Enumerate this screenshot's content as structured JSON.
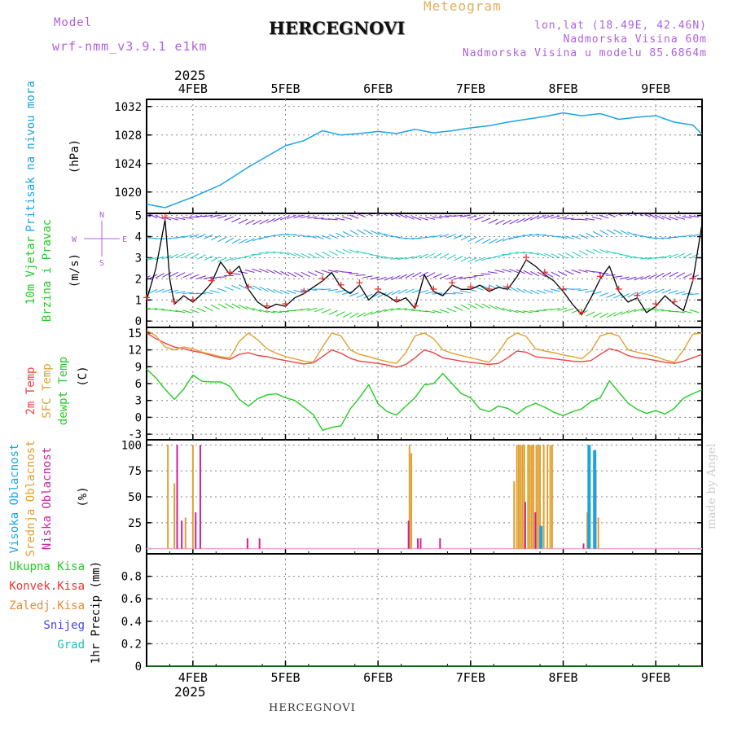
{
  "header": {
    "meteogram_label": "Meteogram",
    "title": "HERCEGNOVI",
    "model_label": "Model",
    "model_name": "wrf-nmm_v3.9.1 e1km",
    "lonlat": "lon,lat (18.49E, 42.46N)",
    "elevation": "Nadmorska Visina 60m",
    "model_elevation": "Nadmorska Visina u modelu 85.6864m",
    "year_top": "2025",
    "year_bottom": "2025",
    "footer_title": "HERCEGNOVI",
    "watermark": "made by Angel"
  },
  "colors": {
    "pressure": "#1aa4e6",
    "wind_speed": "#000000",
    "gust_marks": "#ee3333",
    "t2m": "#ee4444",
    "sfc": "#e0a030",
    "dewpt": "#22cc22",
    "cloud_high": "#1aa4e6",
    "cloud_mid": "#e0a030",
    "cloud_low": "#cc2299",
    "grid": "#888888"
  },
  "chart_data": [
    {
      "id": "pressure",
      "type": "line",
      "ylabel_lines": [
        "Pritisak na nivou mora"
      ],
      "unit": "(hPa)",
      "ylim": [
        1017,
        1033
      ],
      "yticks": [
        1020,
        1024,
        1028,
        1032
      ],
      "x_days": [
        3.5,
        3.7,
        4.0,
        4.3,
        4.6,
        4.8,
        5.0,
        5.2,
        5.4,
        5.6,
        5.8,
        6.0,
        6.2,
        6.4,
        6.6,
        6.8,
        7.0,
        7.2,
        7.4,
        7.6,
        7.8,
        8.0,
        8.2,
        8.4,
        8.6,
        8.8,
        9.0,
        9.2,
        9.4,
        9.5
      ],
      "values": [
        1018.3,
        1017.8,
        1019.3,
        1021.0,
        1023.5,
        1025.0,
        1026.5,
        1027.2,
        1028.6,
        1028.0,
        1028.2,
        1028.5,
        1028.2,
        1028.8,
        1028.3,
        1028.6,
        1029.0,
        1029.3,
        1029.8,
        1030.2,
        1030.6,
        1031.1,
        1030.7,
        1031.0,
        1030.2,
        1030.5,
        1030.7,
        1029.8,
        1029.4,
        1028.1
      ]
    },
    {
      "id": "wind",
      "type": "line",
      "ylabel_lines": [
        "10m Vjetar",
        "Brzina i Pravac"
      ],
      "unit": "(m/s)",
      "compass": [
        "N",
        "W",
        "E",
        "S"
      ],
      "ylim": [
        -0.3,
        5.1
      ],
      "yticks": [
        0,
        1,
        2,
        3,
        4,
        5
      ],
      "x_days": [
        3.5,
        3.6,
        3.7,
        3.75,
        3.8,
        3.9,
        4.0,
        4.1,
        4.2,
        4.3,
        4.4,
        4.5,
        4.6,
        4.7,
        4.8,
        4.9,
        5.0,
        5.1,
        5.2,
        5.3,
        5.4,
        5.5,
        5.6,
        5.7,
        5.8,
        5.9,
        6.0,
        6.1,
        6.2,
        6.3,
        6.4,
        6.5,
        6.6,
        6.7,
        6.8,
        6.9,
        7.0,
        7.1,
        7.2,
        7.3,
        7.4,
        7.5,
        7.6,
        7.7,
        7.8,
        7.9,
        8.0,
        8.1,
        8.2,
        8.3,
        8.4,
        8.5,
        8.6,
        8.7,
        8.8,
        8.9,
        9.0,
        9.1,
        9.2,
        9.3,
        9.4,
        9.5
      ],
      "values": [
        1.0,
        2.5,
        4.8,
        2.0,
        0.8,
        1.2,
        0.9,
        1.3,
        1.8,
        2.8,
        2.2,
        2.6,
        1.5,
        0.9,
        0.6,
        0.8,
        0.7,
        1.1,
        1.3,
        1.6,
        1.9,
        2.3,
        1.6,
        1.3,
        1.7,
        1.0,
        1.4,
        1.2,
        0.9,
        1.1,
        0.6,
        2.2,
        1.4,
        1.2,
        1.7,
        1.5,
        1.5,
        1.7,
        1.4,
        1.6,
        1.5,
        2.1,
        2.9,
        2.6,
        2.2,
        1.9,
        1.4,
        0.8,
        0.3,
        1.1,
        2.0,
        2.6,
        1.4,
        0.9,
        1.1,
        0.4,
        0.7,
        1.2,
        0.8,
        0.5,
        1.9,
        4.6
      ]
    },
    {
      "id": "temperature",
      "type": "line",
      "ylabel_lines": [
        "2m Temp",
        "SFC Temp",
        "dewpt Temp"
      ],
      "unit": "(C)",
      "ylim": [
        -4,
        16
      ],
      "yticks": [
        -3,
        0,
        3,
        6,
        9,
        12,
        15
      ],
      "x_days": [
        3.5,
        3.6,
        3.7,
        3.8,
        3.9,
        4.0,
        4.1,
        4.2,
        4.3,
        4.4,
        4.5,
        4.6,
        4.7,
        4.8,
        4.9,
        5.0,
        5.1,
        5.2,
        5.3,
        5.4,
        5.5,
        5.6,
        5.7,
        5.8,
        5.9,
        6.0,
        6.1,
        6.2,
        6.3,
        6.4,
        6.5,
        6.6,
        6.7,
        6.8,
        6.9,
        7.0,
        7.1,
        7.2,
        7.3,
        7.4,
        7.5,
        7.6,
        7.7,
        7.8,
        7.9,
        8.0,
        8.1,
        8.2,
        8.3,
        8.4,
        8.5,
        8.6,
        8.7,
        8.8,
        8.9,
        9.0,
        9.1,
        9.2,
        9.3,
        9.4,
        9.5
      ],
      "series": [
        {
          "id": "t2m",
          "values": [
            15.0,
            14.0,
            13.2,
            12.5,
            12.2,
            11.8,
            11.5,
            11.0,
            10.6,
            10.3,
            11.2,
            11.5,
            11.0,
            10.8,
            10.4,
            10.1,
            9.8,
            9.5,
            9.7,
            10.8,
            12.0,
            11.4,
            10.5,
            10.0,
            9.8,
            9.6,
            9.3,
            8.9,
            9.4,
            10.6,
            12.0,
            11.5,
            10.6,
            10.3,
            10.0,
            9.8,
            9.6,
            9.4,
            9.6,
            10.6,
            11.8,
            11.6,
            10.8,
            10.6,
            10.4,
            10.2,
            10.0,
            9.9,
            10.1,
            11.2,
            12.2,
            11.8,
            11.0,
            10.6,
            10.4,
            10.1,
            9.8,
            9.6,
            10.0,
            10.6,
            11.2
          ]
        },
        {
          "id": "sfc",
          "values": [
            15.5,
            14.5,
            12.5,
            12.0,
            12.5,
            12.2,
            11.6,
            11.2,
            10.8,
            10.6,
            13.5,
            15.0,
            13.8,
            12.2,
            11.4,
            10.8,
            10.4,
            10.0,
            9.8,
            12.5,
            15.0,
            14.5,
            12.0,
            11.2,
            10.8,
            10.3,
            9.9,
            9.6,
            11.5,
            14.5,
            15.0,
            14.0,
            12.0,
            11.4,
            11.0,
            10.6,
            10.2,
            9.8,
            11.5,
            14.0,
            15.0,
            14.4,
            12.2,
            11.8,
            11.5,
            11.1,
            10.8,
            10.4,
            11.8,
            14.5,
            15.0,
            14.5,
            12.0,
            11.6,
            11.2,
            10.8,
            10.2,
            9.8,
            12.0,
            14.8,
            15.0
          ]
        },
        {
          "id": "dewpt",
          "values": [
            8.6,
            7.0,
            5.0,
            3.2,
            5.0,
            7.5,
            6.4,
            6.3,
            6.3,
            5.5,
            3.2,
            2.0,
            3.3,
            4.0,
            4.2,
            3.5,
            3.0,
            1.8,
            0.5,
            -2.3,
            -1.8,
            -1.5,
            1.5,
            3.5,
            5.8,
            2.4,
            1.0,
            0.4,
            2.0,
            3.5,
            5.8,
            6.0,
            7.8,
            6.0,
            4.2,
            3.5,
            1.5,
            1.0,
            2.0,
            1.6,
            0.6,
            1.8,
            2.5,
            1.8,
            0.9,
            0.3,
            1.0,
            1.5,
            2.8,
            3.5,
            6.5,
            4.5,
            2.5,
            1.4,
            0.7,
            1.2,
            0.6,
            1.6,
            3.4,
            4.2,
            4.9
          ]
        }
      ]
    },
    {
      "id": "clouds",
      "type": "bar",
      "ylabel_lines": [
        "Visoka Oblacnost",
        "Srednja Oblacnost",
        "Niska Oblacnost"
      ],
      "unit": "(%)",
      "ylim": [
        -5,
        105
      ],
      "yticks": [
        0,
        25,
        50,
        75,
        100
      ],
      "series": [
        {
          "id": "cloud_mid",
          "x_days": [
            3.73,
            3.8,
            3.92,
            4.0,
            6.34,
            6.36,
            7.47,
            7.5,
            7.52,
            7.54,
            7.56,
            7.58,
            7.62,
            7.64,
            7.66,
            7.68,
            7.71,
            7.73,
            7.75,
            7.79,
            7.83,
            7.86,
            7.88,
            8.26,
            8.35,
            8.38
          ],
          "values": [
            100,
            63,
            30,
            100,
            100,
            92,
            65,
            100,
            100,
            100,
            100,
            100,
            100,
            100,
            100,
            100,
            100,
            100,
            100,
            100,
            100,
            100,
            100,
            35,
            75,
            30
          ]
        },
        {
          "id": "cloud_low",
          "x_days": [
            3.83,
            3.88,
            4.03,
            4.08,
            4.59,
            4.72,
            6.33,
            6.43,
            6.46,
            6.67,
            7.59,
            7.7,
            8.22,
            8.35
          ],
          "values": [
            100,
            27,
            35,
            100,
            10,
            10,
            27,
            10,
            10,
            10,
            45,
            35,
            5,
            75
          ]
        },
        {
          "id": "cloud_high",
          "x_days": [
            7.76,
            8.28,
            8.34
          ],
          "values": [
            22,
            100,
            95
          ]
        }
      ]
    },
    {
      "id": "precip",
      "type": "line",
      "ylabel_lines": [
        "1hr Precip"
      ],
      "unit": "(mm)",
      "legend": [
        "Ukupna Kisa",
        "Konvek.Kisa",
        "Zaledj.Kisa",
        "Snijeg",
        "Grad"
      ],
      "legend_colors": [
        "#22cc22",
        "#ee3333",
        "#ee8833",
        "#4444ee",
        "#22bbbb"
      ],
      "ylim": [
        0,
        1
      ],
      "yticks": [
        0,
        0.2,
        0.4,
        0.6,
        0.8
      ],
      "ytick_labels": [
        "0",
        "0.2",
        "0.4",
        "0.6",
        "0.8"
      ],
      "x_days": [
        3.5,
        9.5
      ],
      "values": [
        0,
        0
      ]
    }
  ],
  "x_axis": {
    "range_days": [
      3.5,
      9.5
    ],
    "ticks": [
      4,
      5,
      6,
      7,
      8,
      9
    ],
    "labels": [
      "4FEB",
      "5FEB",
      "6FEB",
      "7FEB",
      "8FEB",
      "9FEB"
    ]
  }
}
